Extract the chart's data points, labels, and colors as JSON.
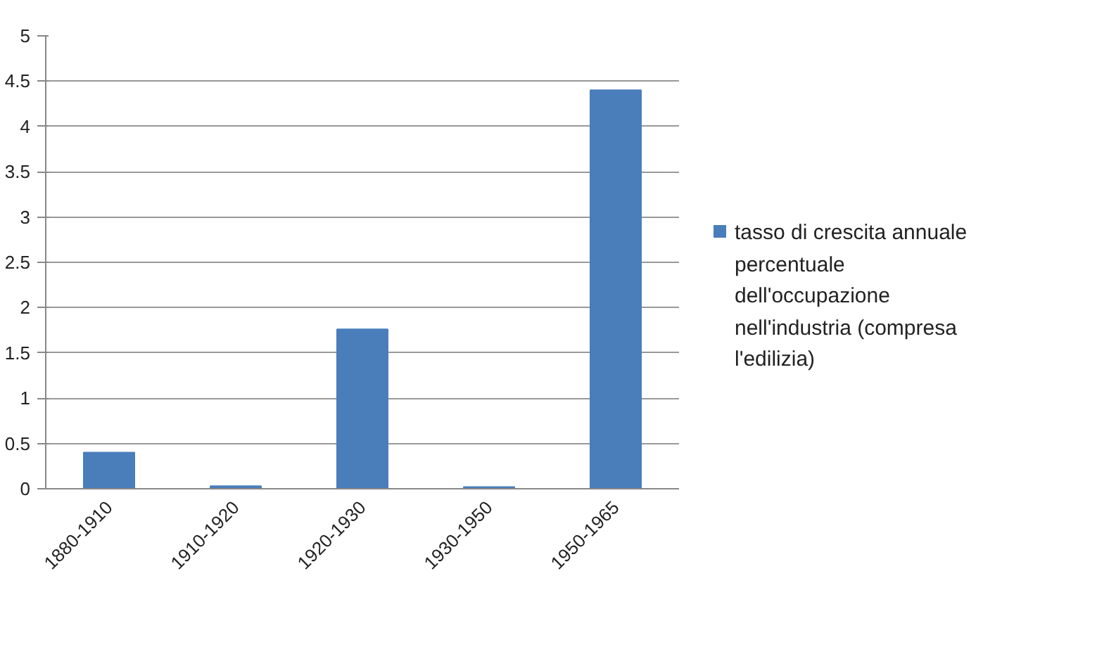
{
  "chart_data": {
    "type": "bar",
    "categories": [
      "1880-1910",
      "1910-1920",
      "1920-1930",
      "1930-1950",
      "1950-1965"
    ],
    "series": [
      {
        "name": "tasso di crescita annuale percentuale dell'occupazione nell'industria (compresa l'edilizia)",
        "color": "#4a7ebb",
        "values": [
          0.4,
          0.03,
          1.76,
          0.02,
          4.4
        ]
      }
    ],
    "ylim": [
      0,
      5
    ],
    "yticks": [
      0,
      {
        "value": 0.5,
        "label": "0.5"
      },
      1,
      {
        "value": 1.5,
        "label": "1.5"
      },
      2,
      {
        "value": 2.5,
        "label": "2.5"
      },
      3,
      {
        "value": 3.5,
        "label": "3.5"
      },
      4,
      {
        "value": 4.5,
        "label": "4.5"
      },
      5
    ],
    "grid": "y",
    "legend": "right"
  }
}
